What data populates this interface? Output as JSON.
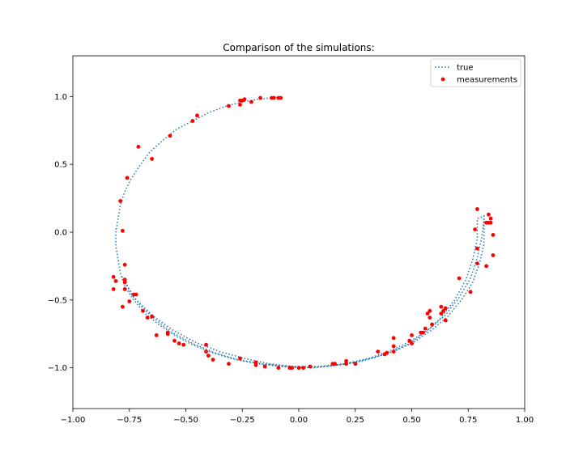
{
  "chart_data": {
    "type": "scatter",
    "title": "Comparison of the simulations:",
    "xlabel": "",
    "ylabel": "",
    "xlim": [
      -1.0,
      1.0
    ],
    "ylim": [
      -1.3,
      1.3
    ],
    "x_ticks": [
      "−1.00",
      "−0.75",
      "−0.50",
      "−0.25",
      "0.00",
      "0.25",
      "0.50",
      "0.75",
      "1.00"
    ],
    "y_ticks": [
      "−1.0",
      "−0.5",
      "0.0",
      "0.5",
      "1.0"
    ],
    "x_tick_values": [
      -1.0,
      -0.75,
      -0.5,
      -0.25,
      0.0,
      0.25,
      0.5,
      0.75,
      1.0
    ],
    "y_tick_values": [
      -1.0,
      -0.5,
      0.0,
      0.5,
      1.0
    ],
    "legend": {
      "placement": "upper-right",
      "entries": [
        "true",
        "measurements"
      ]
    },
    "colors": {
      "true": "#1f77b4",
      "measurements": "#ff0000"
    },
    "series": [
      {
        "name": "true",
        "style": "dotted-line",
        "points": [
          [
            -0.08,
            0.99
          ],
          [
            -0.12,
            0.99
          ],
          [
            -0.18,
            0.98
          ],
          [
            -0.25,
            0.96
          ],
          [
            -0.32,
            0.93
          ],
          [
            -0.4,
            0.88
          ],
          [
            -0.47,
            0.82
          ],
          [
            -0.54,
            0.76
          ],
          [
            -0.6,
            0.68
          ],
          [
            -0.66,
            0.59
          ],
          [
            -0.7,
            0.5
          ],
          [
            -0.74,
            0.4
          ],
          [
            -0.77,
            0.3
          ],
          [
            -0.79,
            0.2
          ],
          [
            -0.8,
            0.1
          ],
          [
            -0.81,
            0.0
          ],
          [
            -0.81,
            -0.1
          ],
          [
            -0.8,
            -0.2
          ],
          [
            -0.79,
            -0.3
          ],
          [
            -0.77,
            -0.4
          ],
          [
            -0.73,
            -0.5
          ],
          [
            -0.68,
            -0.6
          ],
          [
            -0.62,
            -0.68
          ],
          [
            -0.55,
            -0.76
          ],
          [
            -0.47,
            -0.83
          ],
          [
            -0.38,
            -0.89
          ],
          [
            -0.28,
            -0.94
          ],
          [
            -0.18,
            -0.97
          ],
          [
            -0.08,
            -0.99
          ],
          [
            0.02,
            -1.0
          ],
          [
            0.12,
            -0.99
          ],
          [
            0.22,
            -0.97
          ],
          [
            0.32,
            -0.93
          ],
          [
            0.42,
            -0.88
          ],
          [
            0.51,
            -0.81
          ],
          [
            0.59,
            -0.72
          ],
          [
            0.66,
            -0.62
          ],
          [
            0.72,
            -0.5
          ],
          [
            0.77,
            -0.37
          ],
          [
            0.8,
            -0.23
          ],
          [
            0.82,
            -0.08
          ],
          [
            0.82,
            0.05
          ],
          [
            0.82,
            0.12
          ],
          [
            0.79,
            0.1
          ],
          [
            0.79,
            -0.05
          ],
          [
            0.77,
            -0.2
          ],
          [
            0.74,
            -0.35
          ],
          [
            0.69,
            -0.5
          ],
          [
            0.63,
            -0.63
          ],
          [
            0.56,
            -0.74
          ],
          [
            0.48,
            -0.83
          ],
          [
            0.38,
            -0.9
          ],
          [
            0.28,
            -0.95
          ],
          [
            0.17,
            -0.98
          ],
          [
            0.06,
            -1.0
          ],
          [
            -0.05,
            -0.99
          ],
          [
            -0.16,
            -0.97
          ],
          [
            -0.27,
            -0.94
          ],
          [
            -0.37,
            -0.89
          ],
          [
            -0.47,
            -0.82
          ],
          [
            -0.56,
            -0.74
          ],
          [
            -0.63,
            -0.65
          ],
          [
            -0.69,
            -0.56
          ],
          [
            -0.74,
            -0.46
          ],
          [
            -0.77,
            -0.37
          ],
          [
            -0.78,
            -0.33
          ],
          [
            -0.73,
            -0.48
          ],
          [
            -0.65,
            -0.61
          ],
          [
            -0.56,
            -0.72
          ],
          [
            -0.46,
            -0.81
          ],
          [
            -0.35,
            -0.88
          ],
          [
            -0.24,
            -0.93
          ],
          [
            -0.13,
            -0.97
          ],
          [
            -0.02,
            -0.99
          ],
          [
            0.09,
            -0.99
          ],
          [
            0.2,
            -0.97
          ],
          [
            0.31,
            -0.93
          ],
          [
            0.41,
            -0.87
          ],
          [
            0.5,
            -0.8
          ],
          [
            0.58,
            -0.71
          ],
          [
            0.65,
            -0.61
          ],
          [
            0.71,
            -0.48
          ],
          [
            0.76,
            -0.34
          ],
          [
            0.79,
            -0.19
          ],
          [
            0.81,
            -0.04
          ],
          [
            0.82,
            0.1
          ]
        ]
      },
      {
        "name": "measurements",
        "style": "points",
        "points": [
          [
            -0.08,
            0.99
          ],
          [
            -0.09,
            0.99
          ],
          [
            -0.11,
            0.99
          ],
          [
            -0.12,
            0.99
          ],
          [
            -0.17,
            0.99
          ],
          [
            -0.21,
            0.96
          ],
          [
            -0.24,
            0.98
          ],
          [
            -0.25,
            0.97
          ],
          [
            -0.26,
            0.94
          ],
          [
            -0.26,
            0.97
          ],
          [
            -0.31,
            0.93
          ],
          [
            -0.45,
            0.86
          ],
          [
            -0.47,
            0.82
          ],
          [
            -0.57,
            0.71
          ],
          [
            -0.71,
            0.63
          ],
          [
            -0.65,
            0.54
          ],
          [
            -0.76,
            0.4
          ],
          [
            -0.79,
            0.23
          ],
          [
            -0.78,
            0.01
          ],
          [
            -0.77,
            -0.24
          ],
          [
            -0.82,
            -0.33
          ],
          [
            -0.81,
            -0.36
          ],
          [
            -0.77,
            -0.35
          ],
          [
            -0.77,
            -0.37
          ],
          [
            -0.82,
            -0.42
          ],
          [
            -0.77,
            -0.42
          ],
          [
            -0.72,
            -0.46
          ],
          [
            -0.73,
            -0.46
          ],
          [
            -0.75,
            -0.51
          ],
          [
            -0.78,
            -0.55
          ],
          [
            -0.69,
            -0.58
          ],
          [
            -0.65,
            -0.62
          ],
          [
            -0.67,
            -0.63
          ],
          [
            -0.63,
            -0.76
          ],
          [
            -0.58,
            -0.74
          ],
          [
            -0.58,
            -0.75
          ],
          [
            -0.55,
            -0.8
          ],
          [
            -0.53,
            -0.82
          ],
          [
            -0.51,
            -0.83
          ],
          [
            -0.41,
            -0.83
          ],
          [
            -0.41,
            -0.88
          ],
          [
            -0.4,
            -0.91
          ],
          [
            -0.38,
            -0.94
          ],
          [
            -0.31,
            -0.97
          ],
          [
            -0.26,
            -0.93
          ],
          [
            -0.19,
            -0.96
          ],
          [
            -0.19,
            -0.98
          ],
          [
            -0.15,
            -0.99
          ],
          [
            -0.09,
            -1.0
          ],
          [
            -0.04,
            -1.0
          ],
          [
            -0.03,
            -1.0
          ],
          [
            0.0,
            -1.0
          ],
          [
            0.02,
            -1.0
          ],
          [
            0.05,
            -0.99
          ],
          [
            0.15,
            -0.97
          ],
          [
            0.16,
            -0.97
          ],
          [
            0.21,
            -0.95
          ],
          [
            0.21,
            -0.97
          ],
          [
            0.25,
            -0.97
          ],
          [
            0.35,
            -0.88
          ],
          [
            0.38,
            -0.9
          ],
          [
            0.39,
            -0.89
          ],
          [
            0.42,
            -0.78
          ],
          [
            0.42,
            -0.84
          ],
          [
            0.42,
            -0.88
          ],
          [
            0.49,
            -0.8
          ],
          [
            0.5,
            -0.76
          ],
          [
            0.5,
            -0.82
          ],
          [
            0.54,
            -0.74
          ],
          [
            0.55,
            -0.74
          ],
          [
            0.56,
            -0.71
          ],
          [
            0.57,
            -0.6
          ],
          [
            0.58,
            -0.58
          ],
          [
            0.58,
            -0.63
          ],
          [
            0.59,
            -0.68
          ],
          [
            0.63,
            -0.55
          ],
          [
            0.63,
            -0.6
          ],
          [
            0.64,
            -0.58
          ],
          [
            0.65,
            -0.56
          ],
          [
            0.65,
            -0.65
          ],
          [
            0.71,
            -0.34
          ],
          [
            0.76,
            -0.44
          ],
          [
            0.78,
            0.02
          ],
          [
            0.79,
            -0.12
          ],
          [
            0.79,
            -0.23
          ],
          [
            0.79,
            0.17
          ],
          [
            0.83,
            -0.25
          ],
          [
            0.83,
            0.07
          ],
          [
            0.84,
            0.13
          ],
          [
            0.84,
            0.07
          ],
          [
            0.85,
            0.1
          ],
          [
            0.85,
            0.07
          ],
          [
            0.86,
            -0.02
          ],
          [
            0.86,
            -0.17
          ]
        ]
      }
    ]
  }
}
